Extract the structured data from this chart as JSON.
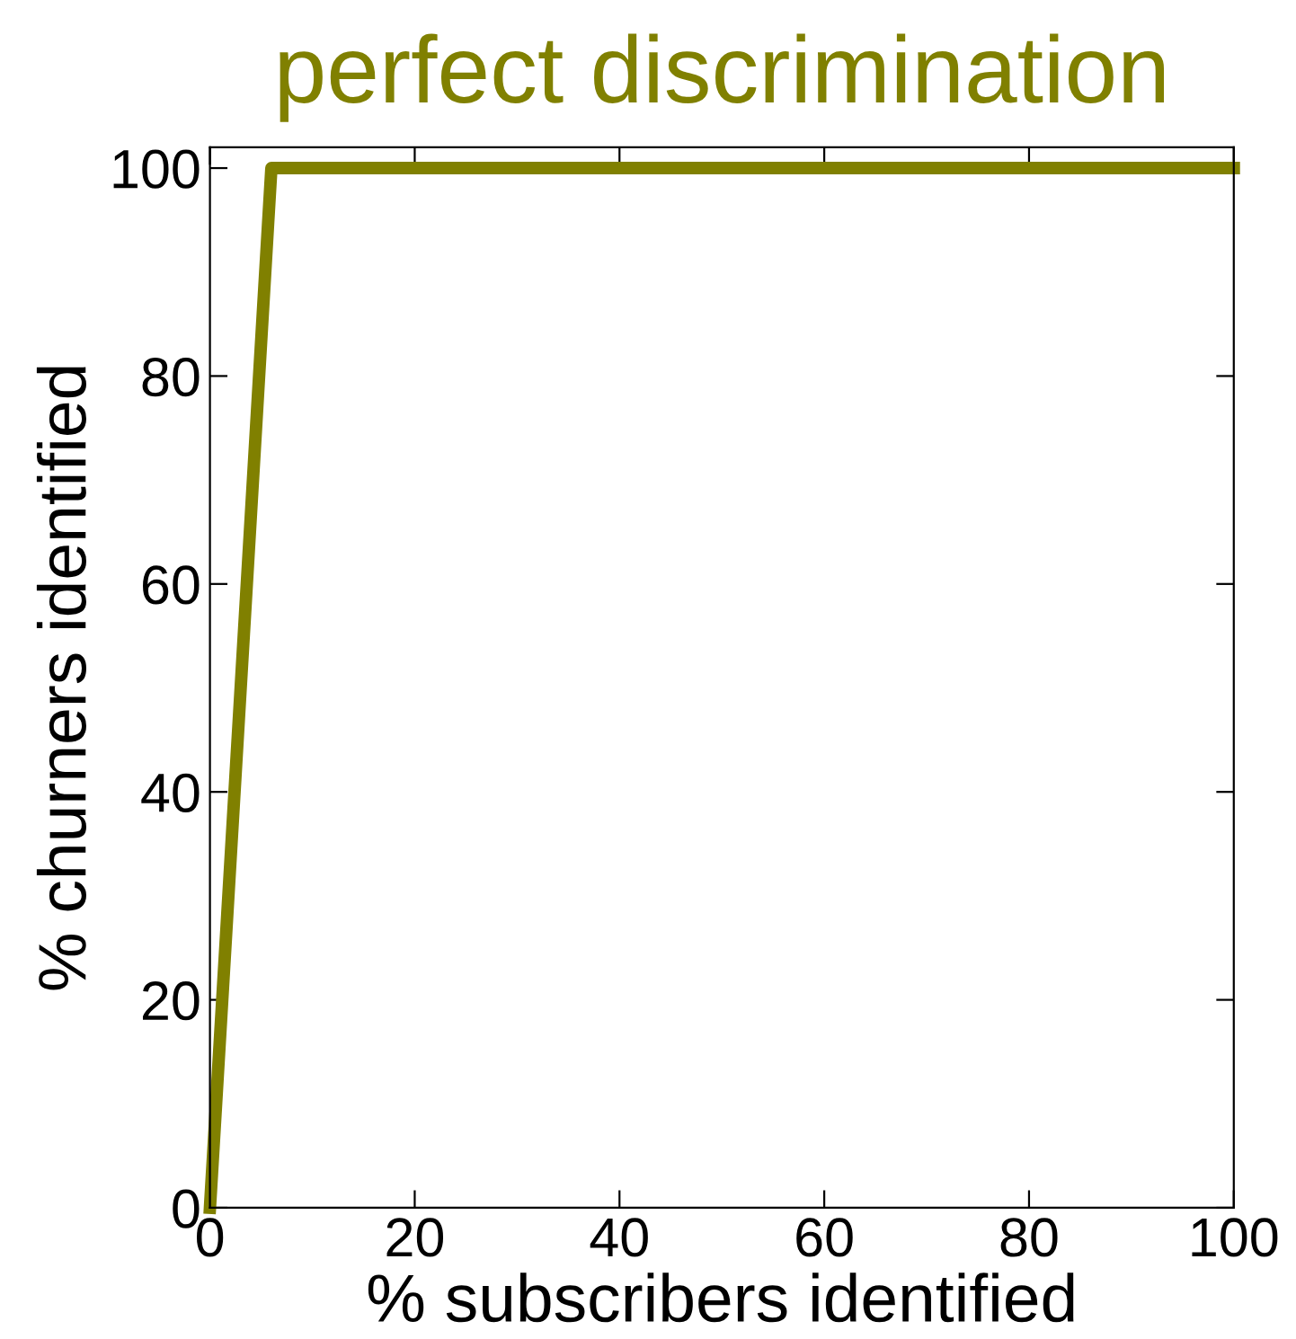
{
  "chart_data": {
    "type": "line",
    "title": "perfect discrimination",
    "xlabel": "% subscribers identified",
    "ylabel": "% churners identified",
    "series": [
      {
        "color": "#808000",
        "x": [
          0,
          6,
          100
        ],
        "values": [
          0,
          100,
          100
        ]
      }
    ],
    "xlim": [
      0,
      100
    ],
    "ylim": [
      0,
      102
    ],
    "xticks": [
      0,
      20,
      40,
      60,
      80,
      100
    ],
    "yticks": [
      0,
      20,
      40,
      60,
      80,
      100
    ],
    "grid": false,
    "legend": false,
    "marker": "none",
    "line_style": "solid"
  }
}
